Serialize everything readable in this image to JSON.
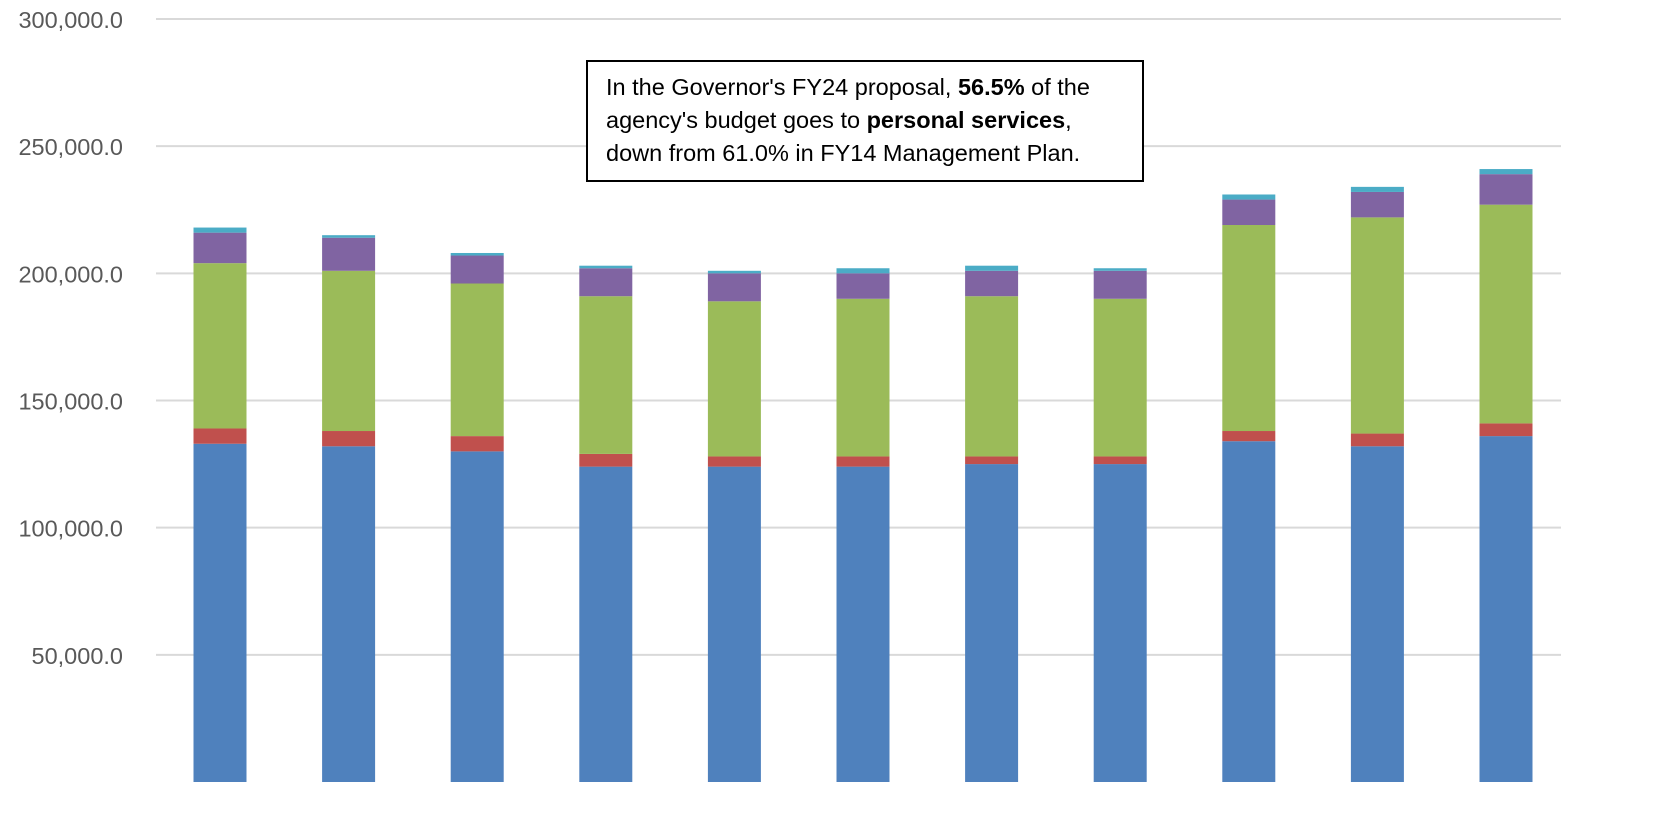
{
  "chart_data": {
    "type": "bar",
    "stacked": true,
    "title": "",
    "xlabel": "",
    "ylabel": "",
    "ylim": [
      0,
      300000
    ],
    "yticks": [
      50000,
      100000,
      150000,
      200000,
      250000,
      300000
    ],
    "ytick_labels": [
      "50,000.0",
      "100,000.0",
      "150,000.0",
      "200,000.0",
      "250,000.0",
      "300,000.0"
    ],
    "grid": true,
    "legend": "none",
    "categories": [
      "",
      "",
      "",
      "",
      "",
      "",
      "",
      "",
      "",
      "",
      ""
    ],
    "series": [
      {
        "color": "#4F81BD",
        "values": [
          133000,
          132000,
          130000,
          124000,
          124000,
          124000,
          125000,
          125000,
          134000,
          132000,
          136000
        ]
      },
      {
        "color": "#C0504D",
        "values": [
          6000,
          6000,
          6000,
          5000,
          4000,
          4000,
          3000,
          3000,
          4000,
          5000,
          5000
        ]
      },
      {
        "color": "#9BBB59",
        "values": [
          65000,
          63000,
          60000,
          62000,
          61000,
          62000,
          63000,
          62000,
          81000,
          85000,
          86000
        ]
      },
      {
        "color": "#8064A2",
        "values": [
          12000,
          13000,
          11000,
          11000,
          11000,
          10000,
          10000,
          11000,
          10000,
          10000,
          12000
        ]
      },
      {
        "color": "#4BACC6",
        "values": [
          2000,
          1000,
          1000,
          1000,
          1000,
          2000,
          2000,
          1000,
          2000,
          2000,
          2000
        ]
      }
    ]
  },
  "annotation": {
    "line1_prefix": "In the Governor's FY24 proposal, ",
    "line1_bold": "56.5%",
    "line1_suffix": " of the",
    "line2_prefix": "agency's  budget goes to ",
    "line2_bold": "personal services",
    "line2_suffix": ",",
    "line3": "down from 61.0% in FY14 Management Plan."
  }
}
